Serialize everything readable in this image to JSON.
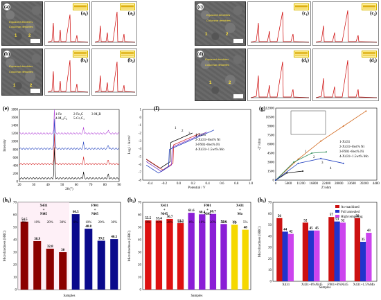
{
  "row1": {
    "a": {
      "label": "(a)",
      "anno1": "Equiaxed dendrites",
      "anno2": "Columnar dendrites",
      "pts": [
        "1",
        "2"
      ]
    },
    "a1": {
      "label": "(a₁)"
    },
    "a2": {
      "label": "(a₂)"
    },
    "b": {
      "label": "(b)",
      "anno1": "Equiaxed dendrites",
      "anno2": "Columnar dendrites",
      "pts": [
        "1",
        "2"
      ]
    },
    "b1": {
      "label": "(b₁)"
    },
    "b2": {
      "label": "(b₂)"
    },
    "c": {
      "label": "(c)",
      "anno1": "Equiaxed dendrites",
      "anno2": "Columnar dendrites",
      "pts": [
        "1",
        "2"
      ]
    },
    "c1": {
      "label": "(c₁)"
    },
    "c2": {
      "label": "(c₂)"
    },
    "d": {
      "label": "(d)",
      "anno1": "Equiaxed dendrites",
      "anno2": "Columnar dendrites",
      "pts": [
        "1",
        "2"
      ]
    },
    "d1": {
      "label": "(d₁)"
    },
    "d2": {
      "label": "(d₂)"
    }
  },
  "e": {
    "label": "(e)",
    "ylabel": "Intensity",
    "xlabel": "2θ (°)",
    "legend": [
      "1-Fe",
      "2-Fe₃C",
      "3-M₃B",
      "4-M₂₃C₆",
      "5-Cr₇C₃"
    ],
    "yticks": [
      "0",
      "200",
      "400",
      "600",
      "800",
      "1000",
      "1200",
      "1400",
      "1600",
      "1800"
    ],
    "xticks": [
      "20",
      "30",
      "40",
      "50",
      "60",
      "70",
      "80",
      "90"
    ]
  },
  "f": {
    "label": "(f)",
    "ylabel": "Log i / A/cm²",
    "xlabel": "Potential / V",
    "legend": [
      "1-X431",
      "2-X431+8wt% Ni",
      "3-F901+8wt% Ni",
      "4-X431+1.5wt% Mo"
    ],
    "yticks": [
      "1",
      "0",
      "-1",
      "-2",
      "-3",
      "-4",
      "-5",
      "-6",
      "-7",
      "-8"
    ],
    "xticks": [
      "-0.4",
      "-0.2",
      "0.0",
      "0.2",
      "0.4",
      "0.6",
      "0.8",
      "1.0"
    ],
    "marks": [
      "1",
      "2",
      "3",
      "4"
    ]
  },
  "g": {
    "label": "(g)",
    "ylabel": "-Z''/ohm",
    "xlabel": "Z'/ohm",
    "legend": [
      "1-X431",
      "2-X431+8wt% Ni",
      "3-F901+8wt% Ni",
      "4-X431+1.5wt% Mo"
    ],
    "yticks": [
      "0",
      "1500",
      "3000",
      "4500",
      "6000",
      "7500",
      "9000",
      "10500",
      "12000"
    ],
    "xticks": [
      "0",
      "5600",
      "11200",
      "16800",
      "22400",
      "28000",
      "33600",
      "39200",
      "44800"
    ],
    "marks": [
      "1",
      "2",
      "3",
      "4"
    ]
  },
  "h1": {
    "label": "(h₁)",
    "ylabel": "Microhardness (HRC)",
    "xlabel": "Samples",
    "group1": [
      "X431",
      "+",
      "Ni45"
    ],
    "group2": [
      "F901",
      "+",
      "Ni45"
    ],
    "pct": [
      "0%",
      "10%",
      "20%",
      "30%",
      "0%",
      "10%",
      "20%",
      "30%"
    ]
  },
  "h2": {
    "label": "(h₂)",
    "ylabel": "Microhardness (HRC)",
    "xlabel": "Samples",
    "group1": [
      "X431",
      "+",
      "Ni45"
    ],
    "group2": [
      "F901",
      "+",
      "Ni45"
    ],
    "group3": [
      "X431",
      "+",
      "Mo"
    ],
    "pct": [
      "0%",
      "10%",
      "20%",
      "30%",
      "0%",
      "10%",
      "20%",
      "30%",
      "3%",
      "5%"
    ]
  },
  "h3": {
    "label": "(h₃)",
    "ylabel": "Microhardness (HRC)",
    "xlabel": "Samples",
    "legend": [
      "As-machined",
      "Full annealed",
      "High tempering"
    ],
    "ylim_label": "70"
  },
  "chart_data": [
    {
      "type": "line",
      "title": "",
      "xlabel": "2θ (°)",
      "ylabel": "Intensity",
      "xlim": [
        20,
        90
      ],
      "ylim": [
        0,
        1800
      ],
      "series": [
        {
          "color": "#000000",
          "peaks_x": [
            44.6,
            65.0,
            82.3
          ],
          "baseline": 80
        },
        {
          "color": "#d62728",
          "peaks_x": [
            44.6,
            65.0,
            82.3
          ],
          "baseline": 440
        },
        {
          "color": "#1f3fbf",
          "peaks_x": [
            44.6,
            65.0,
            82.3
          ],
          "baseline": 820
        },
        {
          "color": "#b03fd6",
          "peaks_x": [
            44.6,
            65.0,
            82.3
          ],
          "baseline": 1200
        }
      ]
    },
    {
      "type": "line",
      "title": "",
      "xlabel": "Potential / V",
      "ylabel": "Log i / A/cm²",
      "xlim": [
        -0.5,
        1.0
      ],
      "ylim": [
        -8,
        1
      ],
      "series": [
        {
          "name": "1-X431",
          "color": "#000000",
          "ecorr": -0.26
        },
        {
          "name": "2-X431+8wt% Ni",
          "color": "#d62728",
          "ecorr": -0.22
        },
        {
          "name": "3-F901+8wt% Ni",
          "color": "#7f2fbf",
          "ecorr": -0.24
        },
        {
          "name": "4-X431+1.5wt% Mo",
          "color": "#1f3fbf",
          "ecorr": -0.28
        }
      ]
    },
    {
      "type": "line",
      "title": "",
      "xlabel": "Z'/ohm",
      "ylabel": "-Z''/ohm",
      "xlim": [
        0,
        44800
      ],
      "ylim": [
        0,
        12000
      ],
      "series": [
        {
          "name": "1-X431",
          "color": "#000000",
          "x": [
            0,
            5000,
            12000
          ],
          "y": [
            0,
            1200,
            1500
          ]
        },
        {
          "name": "2-X431+8wt% Ni",
          "color": "#d2691e",
          "x": [
            0,
            10000,
            20000,
            30000,
            40000
          ],
          "y": [
            0,
            3500,
            6500,
            9000,
            11500
          ]
        },
        {
          "name": "3-F901+8wt% Ni",
          "color": "#2e8b57",
          "x": [
            0,
            8000,
            16000,
            22400
          ],
          "y": [
            0,
            3000,
            4500,
            4700
          ]
        },
        {
          "name": "4-X431+1.5wt% Mo",
          "color": "#1f3fbf",
          "x": [
            0,
            10000,
            20000,
            30000
          ],
          "y": [
            0,
            2800,
            3600,
            2800
          ]
        }
      ]
    },
    {
      "type": "bar",
      "title": "",
      "xlabel": "Samples",
      "ylabel": "Microhardness (HRC)",
      "ylim": [
        0,
        70
      ],
      "categories": [
        "0%",
        "10%",
        "20%",
        "30%",
        "0%",
        "10%",
        "20%",
        "30%"
      ],
      "values": [
        54.5,
        38.9,
        32.8,
        30,
        60.5,
        48.8,
        39.2,
        40.5
      ],
      "colors": [
        "#8b0000",
        "#8b0000",
        "#8b0000",
        "#8b0000",
        "#0a0a8c",
        "#0a0a8c",
        "#0a0a8c",
        "#0a0a8c"
      ]
    },
    {
      "type": "bar",
      "title": "",
      "xlabel": "Samples",
      "ylabel": "Microhardness (HRC)",
      "ylim": [
        0,
        70
      ],
      "categories": [
        "0%",
        "10%",
        "20%",
        "30%",
        "0%",
        "10%",
        "20%",
        "30%",
        "3%",
        "5%"
      ],
      "values": [
        55.5,
        55.4,
        56.7,
        53.3,
        61.6,
        60.4,
        60.7,
        52.6,
        52,
        48
      ],
      "colors": [
        "#dd1111",
        "#dd1111",
        "#dd1111",
        "#dd1111",
        "#8a1ed6",
        "#8a1ed6",
        "#8a1ed6",
        "#8a1ed6",
        "#f5d800",
        "#f5d800"
      ]
    },
    {
      "type": "bar",
      "title": "",
      "xlabel": "Samples",
      "ylabel": "Microhardness (HRC)",
      "ylim": [
        0,
        70
      ],
      "categories": [
        "X431",
        "X431+8%Ni45",
        "F901+8%Ni45",
        "X431+1.5%Mo"
      ],
      "series": [
        {
          "name": "As-machined",
          "color": "#cc1111",
          "values": [
            56,
            52,
            57,
            56
          ]
        },
        {
          "name": "Full annealed",
          "color": "#2233cc",
          "values": [
            44,
            45,
            53,
            35
          ]
        },
        {
          "name": "High tempering",
          "color": "#cc44ee",
          "values": [
            42,
            45,
            52,
            43
          ]
        }
      ]
    }
  ]
}
